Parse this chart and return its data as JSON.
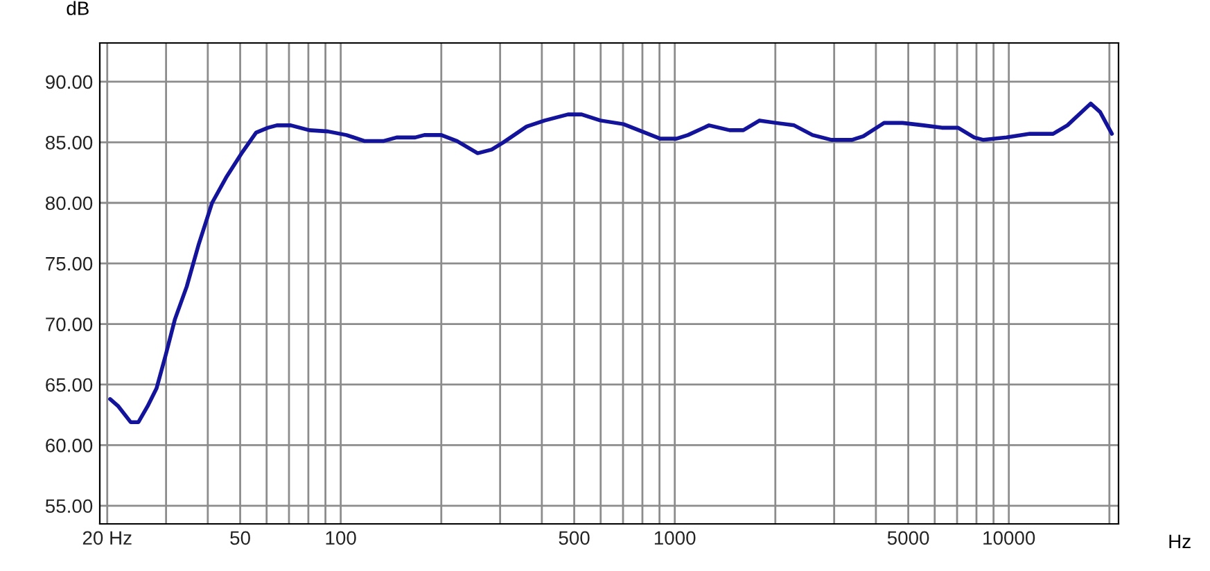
{
  "chart_data": {
    "type": "line",
    "xlabel": "Hz",
    "ylabel": "dB",
    "log": "x",
    "grid": true,
    "marker": "none",
    "line_style": "solid",
    "xlim": [
      19,
      21300
    ],
    "ylim": [
      53.5,
      93.2
    ],
    "xticks": [
      {
        "value": 20,
        "label": "20 Hz"
      },
      {
        "value": 30,
        "label": null
      },
      {
        "value": 40,
        "label": null
      },
      50,
      {
        "value": 60,
        "label": null
      },
      {
        "value": 70,
        "label": null
      },
      {
        "value": 80,
        "label": null
      },
      {
        "value": 90,
        "label": null
      },
      100,
      {
        "value": 200,
        "label": null
      },
      {
        "value": 300,
        "label": null
      },
      {
        "value": 400,
        "label": null
      },
      500,
      {
        "value": 600,
        "label": null
      },
      {
        "value": 700,
        "label": null
      },
      {
        "value": 800,
        "label": null
      },
      {
        "value": 900,
        "label": null
      },
      1000,
      {
        "value": 2000,
        "label": null
      },
      {
        "value": 3000,
        "label": null
      },
      {
        "value": 4000,
        "label": null
      },
      5000,
      {
        "value": 6000,
        "label": null
      },
      {
        "value": 7000,
        "label": null
      },
      {
        "value": 8000,
        "label": null
      },
      {
        "value": 9000,
        "label": null
      },
      10000,
      {
        "value": 20000,
        "label": null
      }
    ],
    "yticks": [
      {
        "value": 55,
        "label": "55.00"
      },
      {
        "value": 60,
        "label": "60.00"
      },
      {
        "value": 65,
        "label": "65.00"
      },
      {
        "value": 70,
        "label": "70.00"
      },
      {
        "value": 75,
        "label": "75.00"
      },
      {
        "value": 80,
        "label": "80.00"
      },
      {
        "value": 85,
        "label": "85.00"
      },
      {
        "value": 90,
        "label": "90.00"
      }
    ],
    "series": [
      {
        "color": "#14149b",
        "x": [
          20.4,
          21.6,
          23.5,
          24.8,
          26.4,
          28.1,
          29.9,
          31.9,
          34.6,
          37.5,
          41.2,
          45.4,
          50.8,
          55.8,
          60.5,
          64.4,
          70.9,
          80.5,
          91.5,
          104,
          118,
          134,
          147,
          167,
          178,
          200,
          223,
          257,
          283,
          307,
          360,
          408,
          479,
          526,
          599,
          702,
          797,
          905,
          1012,
          1095,
          1266,
          1459,
          1604,
          1794,
          2009,
          2276,
          2585,
          2946,
          3390,
          3668,
          4232,
          4808,
          5551,
          6306,
          7050,
          7877,
          8396,
          9844,
          11560,
          13570,
          14970,
          17580,
          18760,
          20350
        ],
        "values": [
          63.8,
          63.2,
          61.9,
          61.9,
          63.2,
          64.7,
          67.4,
          70.4,
          73.1,
          76.5,
          80.0,
          82.1,
          84.2,
          85.8,
          86.2,
          86.4,
          86.4,
          86.0,
          85.9,
          85.6,
          85.1,
          85.1,
          85.4,
          85.4,
          85.6,
          85.6,
          85.1,
          84.1,
          84.4,
          85.0,
          86.3,
          86.8,
          87.3,
          87.3,
          86.8,
          86.5,
          85.9,
          85.3,
          85.3,
          85.6,
          86.4,
          86.0,
          86.0,
          86.8,
          86.6,
          86.4,
          85.6,
          85.2,
          85.2,
          85.5,
          86.6,
          86.6,
          86.4,
          86.2,
          86.2,
          85.4,
          85.2,
          85.4,
          85.7,
          85.7,
          86.4,
          88.2,
          87.5,
          85.7
        ]
      }
    ]
  }
}
